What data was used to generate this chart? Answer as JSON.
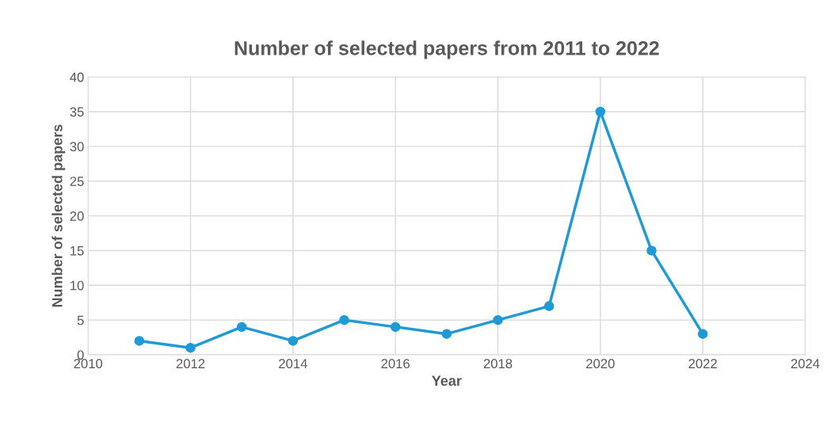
{
  "chart_data": {
    "type": "line",
    "title": "Number of selected papers from 2011 to 2022",
    "xlabel": "Year",
    "ylabel": "Number of selected papers",
    "x": [
      2011,
      2012,
      2013,
      2014,
      2015,
      2016,
      2017,
      2018,
      2019,
      2020,
      2021,
      2022
    ],
    "series": [
      {
        "color": "#1f9ad6",
        "values": [
          2,
          1,
          4,
          2,
          5,
          4,
          3,
          5,
          7,
          35,
          15,
          3
        ]
      }
    ],
    "xlim": [
      2010,
      2024
    ],
    "xticks": [
      2010,
      2012,
      2014,
      2016,
      2018,
      2020,
      2022,
      2024
    ],
    "ylim": [
      0,
      40
    ],
    "yticks": [
      0,
      5,
      10,
      15,
      20,
      25,
      30,
      35,
      40
    ],
    "grid": true,
    "marker": "circle",
    "line_style": "solid",
    "legend": false
  }
}
